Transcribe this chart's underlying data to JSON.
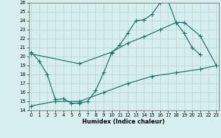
{
  "xlabel": "Humidex (Indice chaleur)",
  "xlim": [
    -0.3,
    23.3
  ],
  "ylim": [
    14,
    26
  ],
  "bg_color": "#d6eeee",
  "line_color": "#1a7068",
  "grid_color": "#b0d0d0",
  "line1_x": [
    0,
    1,
    2,
    3,
    4,
    5,
    6,
    7,
    8,
    9,
    10,
    11,
    12,
    13,
    14,
    15,
    16,
    17,
    18,
    19,
    20,
    21
  ],
  "line1_y": [
    20.5,
    19.5,
    18.0,
    15.2,
    15.3,
    14.8,
    14.8,
    15.0,
    16.2,
    18.2,
    20.4,
    21.3,
    22.6,
    24.0,
    24.1,
    24.7,
    26.0,
    26.2,
    23.8,
    22.6,
    21.0,
    20.2
  ],
  "line2_x": [
    0,
    6,
    10,
    12,
    14,
    16,
    18,
    19,
    21,
    23
  ],
  "line2_y": [
    20.3,
    19.2,
    20.5,
    21.5,
    22.2,
    23.0,
    23.8,
    23.8,
    22.3,
    19.0
  ],
  "line3_x": [
    0,
    3,
    6,
    9,
    12,
    15,
    18,
    21,
    23
  ],
  "line3_y": [
    14.5,
    15.0,
    15.0,
    16.0,
    17.0,
    17.8,
    18.2,
    18.6,
    19.0
  ]
}
